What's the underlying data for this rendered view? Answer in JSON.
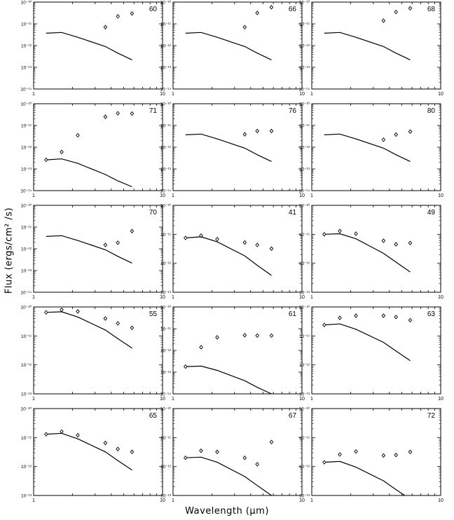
{
  "figure": {
    "ylabel": "Flux (ergs/cm² /s)",
    "xlabel": "Wavelength (μm)"
  },
  "colors": {
    "axes": "#000000",
    "background": "#ffffff"
  },
  "chart_data": [
    {
      "type": "line+scatter",
      "label": "60",
      "xlim": [
        1,
        10
      ],
      "ylim_exp": [
        -14,
        -10
      ],
      "xscale": "log",
      "yscale": "log",
      "xticklabels": [
        "1",
        "10"
      ],
      "yticklabels": [
        "10⁻¹⁴",
        "10⁻¹³",
        "10⁻¹²",
        "10⁻¹¹",
        "10⁻¹⁰"
      ],
      "model": {
        "x": [
          1.25,
          1.65,
          2.2,
          3.6,
          4.5,
          5.8
        ],
        "y": [
          3.7e-12,
          4e-12,
          2.4e-12,
          9e-13,
          4.5e-13,
          2.2e-13
        ]
      },
      "points": {
        "x": [
          3.6,
          4.5,
          5.8
        ],
        "y": [
          7e-12,
          2.2e-11,
          3e-11
        ]
      }
    },
    {
      "type": "line+scatter",
      "label": "66",
      "xlim": [
        1,
        10
      ],
      "ylim_exp": [
        -14,
        -10
      ],
      "xscale": "log",
      "yscale": "log",
      "xticklabels": [
        "1",
        "10"
      ],
      "yticklabels": [
        "10⁻¹⁴",
        "10⁻¹³",
        "10⁻¹²",
        "10⁻¹¹",
        "10⁻¹⁰"
      ],
      "model": {
        "x": [
          1.25,
          1.65,
          2.2,
          3.6,
          4.5,
          5.8
        ],
        "y": [
          3.7e-12,
          4e-12,
          2.4e-12,
          9e-13,
          4.5e-13,
          2.2e-13
        ]
      },
      "points": {
        "x": [
          3.6,
          4.5,
          5.8
        ],
        "y": [
          7e-12,
          3.2e-11,
          5.8e-11
        ]
      }
    },
    {
      "type": "line+scatter",
      "label": "68",
      "xlim": [
        1,
        10
      ],
      "ylim_exp": [
        -14,
        -10
      ],
      "xscale": "log",
      "yscale": "log",
      "xticklabels": [
        "1",
        "10"
      ],
      "yticklabels": [
        "10⁻¹⁴",
        "10⁻¹³",
        "10⁻¹²",
        "10⁻¹¹",
        "10⁻¹⁰"
      ],
      "model": {
        "x": [
          1.25,
          1.65,
          2.2,
          3.6,
          4.5,
          5.8
        ],
        "y": [
          3.7e-12,
          4e-12,
          2.4e-12,
          9e-13,
          4.5e-13,
          2.2e-13
        ]
      },
      "points": {
        "x": [
          3.6,
          4.5,
          5.8
        ],
        "y": [
          1.4e-11,
          3.5e-11,
          5.2e-11
        ]
      }
    },
    {
      "type": "line+scatter",
      "label": "71",
      "xlim": [
        1,
        10
      ],
      "ylim_exp": [
        -14,
        -10
      ],
      "xscale": "log",
      "yscale": "log",
      "xticklabels": [
        "1",
        "10"
      ],
      "yticklabels": [
        "10⁻¹⁴",
        "10⁻¹³",
        "10⁻¹²",
        "10⁻¹¹",
        "10⁻¹⁰"
      ],
      "model": {
        "x": [
          1.25,
          1.65,
          2.2,
          3.6,
          4.5,
          5.8
        ],
        "y": [
          2.6e-13,
          2.9e-13,
          1.8e-13,
          5.5e-14,
          2.8e-14,
          1.5e-14
        ]
      },
      "points": {
        "x": [
          1.25,
          1.65,
          2.2,
          3.6,
          4.5,
          5.8
        ],
        "y": [
          2.6e-13,
          6e-13,
          3.5e-12,
          2.5e-11,
          3.6e-11,
          3.5e-11
        ]
      }
    },
    {
      "type": "line+scatter",
      "label": "76",
      "xlim": [
        1,
        10
      ],
      "ylim_exp": [
        -14,
        -10
      ],
      "xscale": "log",
      "yscale": "log",
      "xticklabels": [
        "1",
        "10"
      ],
      "yticklabels": [
        "10⁻¹⁴",
        "10⁻¹³",
        "10⁻¹²",
        "10⁻¹¹",
        "10⁻¹⁰"
      ],
      "model": {
        "x": [
          1.25,
          1.65,
          2.2,
          3.6,
          4.5,
          5.8
        ],
        "y": [
          3.7e-12,
          4e-12,
          2.4e-12,
          9e-13,
          4.5e-13,
          2.2e-13
        ]
      },
      "points": {
        "x": [
          3.6,
          4.5,
          5.8
        ],
        "y": [
          3.9e-12,
          5.5e-12,
          5.5e-12
        ]
      }
    },
    {
      "type": "line+scatter",
      "label": "80",
      "xlim": [
        1,
        10
      ],
      "ylim_exp": [
        -14,
        -10
      ],
      "xscale": "log",
      "yscale": "log",
      "xticklabels": [
        "1",
        "10"
      ],
      "yticklabels": [
        "10⁻¹⁴",
        "10⁻¹³",
        "10⁻¹²",
        "10⁻¹¹",
        "10⁻¹⁰"
      ],
      "model": {
        "x": [
          1.25,
          1.65,
          2.2,
          3.6,
          4.5,
          5.8
        ],
        "y": [
          3.7e-12,
          4e-12,
          2.4e-12,
          9e-13,
          4.5e-13,
          2.2e-13
        ]
      },
      "points": {
        "x": [
          3.6,
          4.5,
          5.8
        ],
        "y": [
          2.2e-12,
          3.8e-12,
          5.2e-12
        ]
      }
    },
    {
      "type": "line+scatter",
      "label": "70",
      "xlim": [
        1,
        10
      ],
      "ylim_exp": [
        -14,
        -10
      ],
      "xscale": "log",
      "yscale": "log",
      "xticklabels": [
        "1",
        "10"
      ],
      "yticklabels": [
        "10⁻¹⁴",
        "10⁻¹³",
        "10⁻¹²",
        "10⁻¹¹",
        "10⁻¹⁰"
      ],
      "model": {
        "x": [
          1.25,
          1.65,
          2.2,
          3.6,
          4.5,
          5.8
        ],
        "y": [
          3.7e-12,
          4e-12,
          2.4e-12,
          9e-13,
          4.5e-13,
          2.2e-13
        ]
      },
      "points": {
        "x": [
          3.6,
          4.5,
          5.8
        ],
        "y": [
          1.5e-12,
          1.9e-12,
          6.5e-12
        ]
      }
    },
    {
      "type": "line+scatter",
      "label": "41",
      "xlim": [
        1,
        10
      ],
      "ylim_exp": [
        -13,
        -10
      ],
      "xscale": "log",
      "yscale": "log",
      "xticklabels": [
        "1",
        "10"
      ],
      "yticklabels": [
        "10⁻¹³",
        "10⁻¹²",
        "10⁻¹¹",
        "10⁻¹⁰"
      ],
      "model": {
        "x": [
          1.25,
          1.65,
          2.2,
          3.6,
          4.5,
          5.8
        ],
        "y": [
          7.5e-12,
          8.2e-12,
          5.5e-12,
          1.8e-12,
          8.5e-13,
          3.8e-13
        ]
      },
      "points": {
        "x": [
          1.25,
          1.65,
          2.2,
          3.6,
          4.5,
          5.8
        ],
        "y": [
          7.5e-12,
          9e-12,
          6.8e-12,
          5.2e-12,
          4.3e-12,
          3.2e-12
        ]
      }
    },
    {
      "type": "line+scatter",
      "label": "49",
      "xlim": [
        1,
        10
      ],
      "ylim_exp": [
        -13,
        -10
      ],
      "xscale": "log",
      "yscale": "log",
      "xticklabels": [
        "1",
        "10"
      ],
      "yticklabels": [
        "10⁻¹³",
        "10⁻¹²",
        "10⁻¹¹",
        "10⁻¹⁰"
      ],
      "model": {
        "x": [
          1.25,
          1.65,
          2.2,
          3.6,
          4.5,
          5.8
        ],
        "y": [
          1e-11,
          1.05e-11,
          7e-12,
          2.2e-12,
          1.1e-12,
          5e-13
        ]
      },
      "points": {
        "x": [
          1.25,
          1.65,
          2.2,
          3.6,
          4.5,
          5.8
        ],
        "y": [
          1e-11,
          1.3e-11,
          1.05e-11,
          6e-12,
          4.5e-12,
          5e-12
        ]
      }
    },
    {
      "type": "line+scatter",
      "label": "55",
      "xlim": [
        1,
        10
      ],
      "ylim_exp": [
        -13,
        -10
      ],
      "xscale": "log",
      "yscale": "log",
      "xticklabels": [
        "1",
        "10"
      ],
      "yticklabels": [
        "10⁻¹³",
        "10⁻¹²",
        "10⁻¹¹",
        "10⁻¹⁰"
      ],
      "model": {
        "x": [
          1.25,
          1.65,
          2.2,
          3.6,
          4.5,
          5.8
        ],
        "y": [
          6.5e-11,
          6.8e-11,
          4.5e-11,
          1.6e-11,
          8e-12,
          3.8e-12
        ]
      },
      "points": {
        "x": [
          1.25,
          1.65,
          2.2,
          3.6,
          4.5,
          5.8
        ],
        "y": [
          6.5e-11,
          8e-11,
          7e-11,
          4e-11,
          2.7e-11,
          1.9e-11
        ]
      }
    },
    {
      "type": "line+scatter",
      "label": "61",
      "xlim": [
        1,
        10
      ],
      "ylim_exp": [
        -14,
        -10
      ],
      "xscale": "log",
      "yscale": "log",
      "xticklabels": [
        "1",
        "10"
      ],
      "yticklabels": [
        "10⁻¹⁴",
        "10⁻¹³",
        "10⁻¹²",
        "10⁻¹¹",
        "10⁻¹⁰"
      ],
      "model": {
        "x": [
          1.25,
          1.65,
          2.2,
          3.6,
          4.5,
          5.8
        ],
        "y": [
          1.8e-13,
          1.9e-13,
          1.2e-13,
          4e-14,
          2e-14,
          1e-14
        ]
      },
      "points": {
        "x": [
          1.25,
          1.65,
          2.2,
          3.6,
          4.5,
          5.8
        ],
        "y": [
          1.8e-13,
          1.4e-12,
          4e-12,
          5e-12,
          4.8e-12,
          4.8e-12
        ]
      }
    },
    {
      "type": "line+scatter",
      "label": "63",
      "xlim": [
        1,
        10
      ],
      "ylim_exp": [
        -13,
        -10
      ],
      "xscale": "log",
      "yscale": "log",
      "xticklabels": [
        "1",
        "10"
      ],
      "yticklabels": [
        "10⁻¹³",
        "10⁻¹²",
        "10⁻¹¹",
        "10⁻¹⁰"
      ],
      "model": {
        "x": [
          1.25,
          1.65,
          2.2,
          3.6,
          4.5,
          5.8
        ],
        "y": [
          2.4e-11,
          2.6e-11,
          1.7e-11,
          6e-12,
          3e-12,
          1.4e-12
        ]
      },
      "points": {
        "x": [
          1.25,
          1.65,
          2.2,
          3.6,
          4.5,
          5.8
        ],
        "y": [
          2.4e-11,
          4.2e-11,
          5e-11,
          5e-11,
          4.5e-11,
          3.5e-11
        ]
      }
    },
    {
      "type": "line+scatter",
      "label": "65",
      "xlim": [
        1,
        10
      ],
      "ylim_exp": [
        -13,
        -10
      ],
      "xscale": "log",
      "yscale": "log",
      "xticklabels": [
        "1",
        "10"
      ],
      "yticklabels": [
        "10⁻¹³",
        "10⁻¹²",
        "10⁻¹¹",
        "10⁻¹⁰"
      ],
      "model": {
        "x": [
          1.25,
          1.65,
          2.2,
          3.6,
          4.5,
          5.8
        ],
        "y": [
          1.3e-11,
          1.4e-11,
          9e-12,
          3.2e-12,
          1.6e-12,
          7.5e-13
        ]
      },
      "points": {
        "x": [
          1.25,
          1.65,
          2.2,
          3.6,
          4.5,
          5.8
        ],
        "y": [
          1.3e-11,
          1.6e-11,
          1.2e-11,
          6.5e-12,
          4e-12,
          3.2e-12
        ]
      }
    },
    {
      "type": "line+scatter",
      "label": "67",
      "xlim": [
        1,
        10
      ],
      "ylim_exp": [
        -13,
        -10
      ],
      "xscale": "log",
      "yscale": "log",
      "xticklabels": [
        "1",
        "10"
      ],
      "yticklabels": [
        "10⁻¹³",
        "10⁻¹²",
        "10⁻¹¹",
        "10⁻¹⁰"
      ],
      "model": {
        "x": [
          1.25,
          1.65,
          2.2,
          3.6,
          4.5,
          5.8
        ],
        "y": [
          2e-12,
          2.1e-12,
          1.4e-12,
          4.5e-13,
          2.2e-13,
          1e-13
        ]
      },
      "points": {
        "x": [
          1.25,
          1.65,
          2.2,
          3.6,
          4.5,
          5.8
        ],
        "y": [
          2e-12,
          3.5e-12,
          3.2e-12,
          2e-12,
          1.2e-12,
          7e-12
        ]
      }
    },
    {
      "type": "line+scatter",
      "label": "72",
      "xlim": [
        1,
        10
      ],
      "ylim_exp": [
        -13,
        -10
      ],
      "xscale": "log",
      "yscale": "log",
      "xticklabels": [
        "1",
        "10"
      ],
      "yticklabels": [
        "10⁻¹³",
        "10⁻¹²",
        "10⁻¹¹",
        "10⁻¹⁰"
      ],
      "model": {
        "x": [
          1.25,
          1.65,
          2.2,
          3.6,
          4.5,
          5.8
        ],
        "y": [
          1.4e-12,
          1.5e-12,
          9.5e-13,
          3.2e-13,
          1.6e-13,
          7.5e-14
        ]
      },
      "points": {
        "x": [
          1.25,
          1.65,
          2.2,
          3.6,
          4.5,
          5.8
        ],
        "y": [
          1.4e-12,
          2.6e-12,
          3.3e-12,
          2.4e-12,
          2.5e-12,
          3.2e-12
        ]
      }
    }
  ]
}
